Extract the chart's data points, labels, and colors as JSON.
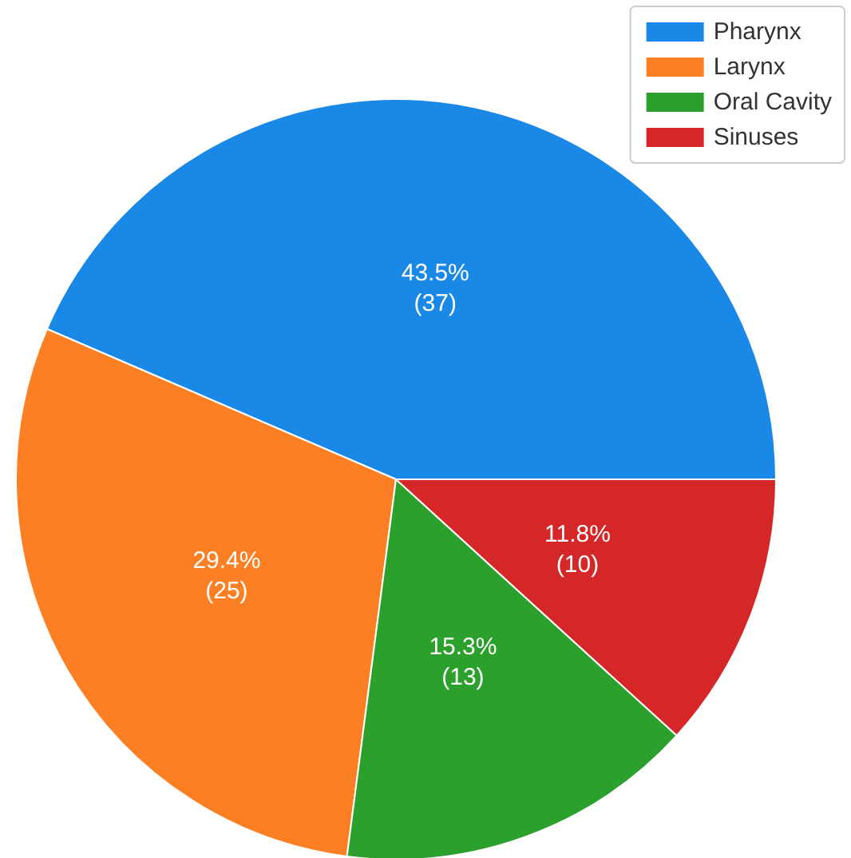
{
  "chart_data": {
    "type": "pie",
    "categories": [
      "Pharynx",
      "Larynx",
      "Oral Cavity",
      "Sinuses"
    ],
    "values": [
      37,
      25,
      13,
      10
    ],
    "colors": [
      "#1a88e6",
      "#fd7f23",
      "#2ca02c",
      "#d62728"
    ],
    "value_labels": [
      "43.5%\n(37)",
      "29.4%\n(25)",
      "15.3%\n(13)",
      "11.8%\n(10)"
    ],
    "legend": "top right"
  }
}
